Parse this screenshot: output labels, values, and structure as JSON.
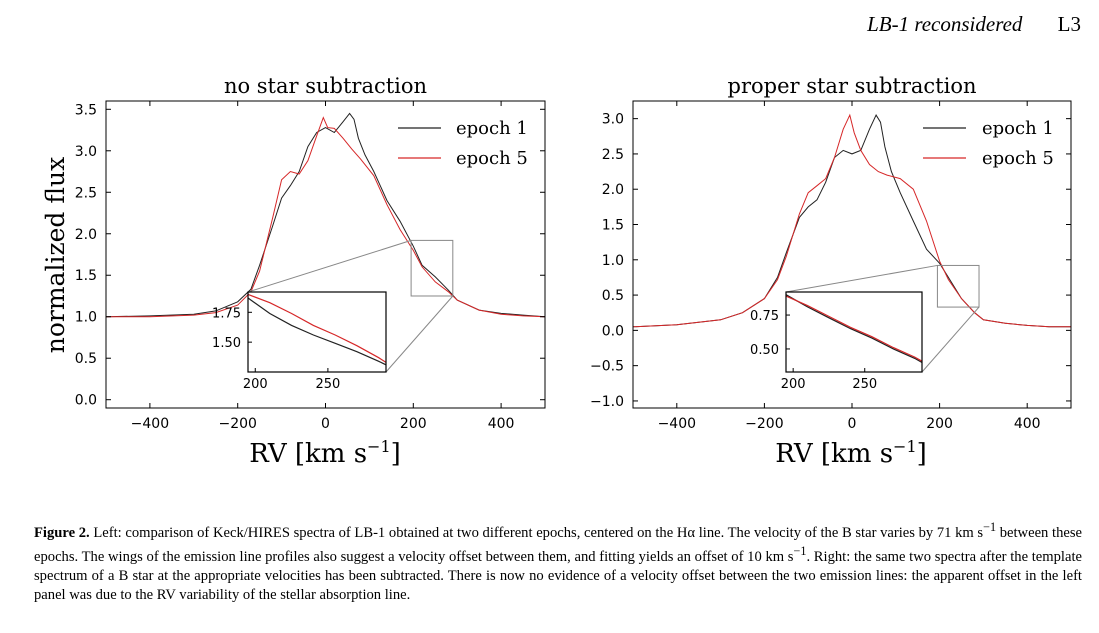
{
  "header": {
    "short_title": "LB-1 reconsidered",
    "page": "L3"
  },
  "figure": {
    "ylabel": "normalized flux",
    "xlabel": "RV [km s",
    "xlabel_sup": "−1",
    "xlabel_close": "]"
  },
  "chart_data": [
    {
      "type": "line",
      "title": "no star subtraction",
      "xlabel": "RV [km s−1]",
      "ylabel": "normalized flux",
      "xlim": [
        -500,
        500
      ],
      "ylim": [
        -0.1,
        3.6
      ],
      "xticks": [
        "−400",
        "−200",
        "0",
        "200",
        "400"
      ],
      "yticks": [
        "0.0",
        "0.5",
        "1.0",
        "1.5",
        "2.0",
        "2.5",
        "3.0",
        "3.5"
      ],
      "legend": "top-right",
      "series": [
        {
          "name": "epoch 1",
          "color": "#222222",
          "x": [
            -500,
            -400,
            -300,
            -250,
            -200,
            -170,
            -150,
            -120,
            -100,
            -80,
            -60,
            -40,
            -20,
            0,
            20,
            40,
            55,
            65,
            75,
            90,
            110,
            140,
            170,
            200,
            220,
            250,
            280,
            300,
            350,
            400,
            450,
            500
          ],
          "y": [
            1.0,
            1.01,
            1.03,
            1.07,
            1.18,
            1.33,
            1.62,
            2.1,
            2.43,
            2.58,
            2.75,
            3.05,
            3.22,
            3.28,
            3.22,
            3.35,
            3.45,
            3.38,
            3.15,
            2.95,
            2.75,
            2.4,
            2.15,
            1.85,
            1.62,
            1.48,
            1.32,
            1.2,
            1.08,
            1.04,
            1.02,
            1.0
          ]
        },
        {
          "name": "epoch 5",
          "color": "#d62728",
          "x": [
            -500,
            -400,
            -300,
            -250,
            -200,
            -170,
            -150,
            -120,
            -100,
            -80,
            -60,
            -40,
            -20,
            -5,
            5,
            20,
            40,
            60,
            80,
            110,
            140,
            170,
            200,
            220,
            250,
            280,
            300,
            350,
            400,
            450,
            500
          ],
          "y": [
            1.0,
            1.0,
            1.02,
            1.05,
            1.14,
            1.3,
            1.55,
            2.2,
            2.65,
            2.75,
            2.72,
            2.88,
            3.18,
            3.4,
            3.28,
            3.27,
            3.15,
            3.02,
            2.9,
            2.7,
            2.35,
            2.05,
            1.8,
            1.6,
            1.42,
            1.3,
            1.2,
            1.08,
            1.03,
            1.01,
            1.0
          ]
        }
      ],
      "inset": {
        "xlim": [
          195,
          290
        ],
        "ylim": [
          1.25,
          1.92
        ],
        "xticks": [
          "200",
          "250"
        ],
        "yticks": [
          "1.50",
          "1.75"
        ],
        "series": [
          {
            "name": "epoch 1",
            "x": [
              195,
              210,
              225,
              240,
              255,
              270,
              285,
              290
            ],
            "y": [
              1.87,
              1.74,
              1.64,
              1.56,
              1.49,
              1.42,
              1.34,
              1.31
            ]
          },
          {
            "name": "epoch 5",
            "x": [
              195,
              210,
              225,
              240,
              255,
              270,
              285,
              290
            ],
            "y": [
              1.9,
              1.83,
              1.74,
              1.64,
              1.56,
              1.47,
              1.37,
              1.33
            ]
          }
        ]
      }
    },
    {
      "type": "line",
      "title": "proper star subtraction",
      "xlabel": "RV [km s−1]",
      "ylabel": "",
      "xlim": [
        -500,
        500
      ],
      "ylim": [
        -1.1,
        3.25
      ],
      "xticks": [
        "−400",
        "−200",
        "0",
        "200",
        "400"
      ],
      "yticks": [
        "−1.0",
        "−0.5",
        "0.0",
        "0.5",
        "1.0",
        "1.5",
        "2.0",
        "2.5",
        "3.0"
      ],
      "legend": "top-right",
      "series": [
        {
          "name": "epoch 1",
          "color": "#222222",
          "x": [
            -500,
            -400,
            -300,
            -250,
            -200,
            -170,
            -150,
            -120,
            -100,
            -80,
            -60,
            -40,
            -20,
            0,
            20,
            40,
            55,
            65,
            75,
            90,
            110,
            140,
            170,
            200,
            220,
            250,
            280,
            300,
            350,
            400,
            450,
            500
          ],
          "y": [
            0.05,
            0.08,
            0.15,
            0.25,
            0.45,
            0.75,
            1.1,
            1.6,
            1.75,
            1.85,
            2.1,
            2.45,
            2.55,
            2.5,
            2.55,
            2.85,
            3.05,
            2.95,
            2.6,
            2.25,
            1.95,
            1.55,
            1.15,
            0.95,
            0.75,
            0.45,
            0.25,
            0.15,
            0.1,
            0.07,
            0.05,
            0.05
          ]
        },
        {
          "name": "epoch 5",
          "color": "#d62728",
          "x": [
            -500,
            -400,
            -300,
            -250,
            -200,
            -170,
            -150,
            -120,
            -100,
            -80,
            -60,
            -40,
            -20,
            -5,
            5,
            20,
            40,
            60,
            80,
            110,
            140,
            170,
            200,
            220,
            250,
            280,
            300,
            350,
            400,
            450,
            500
          ],
          "y": [
            0.05,
            0.08,
            0.15,
            0.25,
            0.45,
            0.72,
            1.05,
            1.65,
            1.95,
            2.05,
            2.15,
            2.45,
            2.85,
            3.05,
            2.8,
            2.55,
            2.35,
            2.25,
            2.2,
            2.15,
            2.0,
            1.55,
            0.98,
            0.72,
            0.45,
            0.25,
            0.15,
            0.1,
            0.07,
            0.05,
            0.05
          ]
        }
      ],
      "inset": {
        "xlim": [
          195,
          290
        ],
        "ylim": [
          0.33,
          0.92
        ],
        "xticks": [
          "200",
          "250"
        ],
        "yticks": [
          "0.50",
          "0.75"
        ],
        "series": [
          {
            "name": "epoch 1",
            "x": [
              195,
              210,
              225,
              240,
              255,
              270,
              285,
              290
            ],
            "y": [
              0.9,
              0.81,
              0.73,
              0.65,
              0.58,
              0.5,
              0.43,
              0.4
            ]
          },
          {
            "name": "epoch 5",
            "x": [
              195,
              210,
              225,
              240,
              255,
              270,
              285,
              290
            ],
            "y": [
              0.89,
              0.82,
              0.74,
              0.66,
              0.59,
              0.51,
              0.44,
              0.41
            ]
          }
        ]
      }
    }
  ],
  "caption": {
    "label": "Figure 2.",
    "p1": " Left: comparison of Keck/HIRES spectra of LB-1 obtained at two different epochs, centered on the Hα line. The velocity of the B star varies by 71 km s",
    "sup1": "−1",
    "p2": " between these epochs. The wings of the emission line profiles also suggest a velocity offset between them, and fitting yields an offset of 10 km s",
    "sup2": "−1",
    "p3": ". Right: the same two spectra after the template spectrum of a B star at the appropriate velocities has been subtracted. There is now no evidence of a velocity offset between the two emission lines: the apparent offset in the left panel was due to the RV variability of the stellar absorption line."
  }
}
